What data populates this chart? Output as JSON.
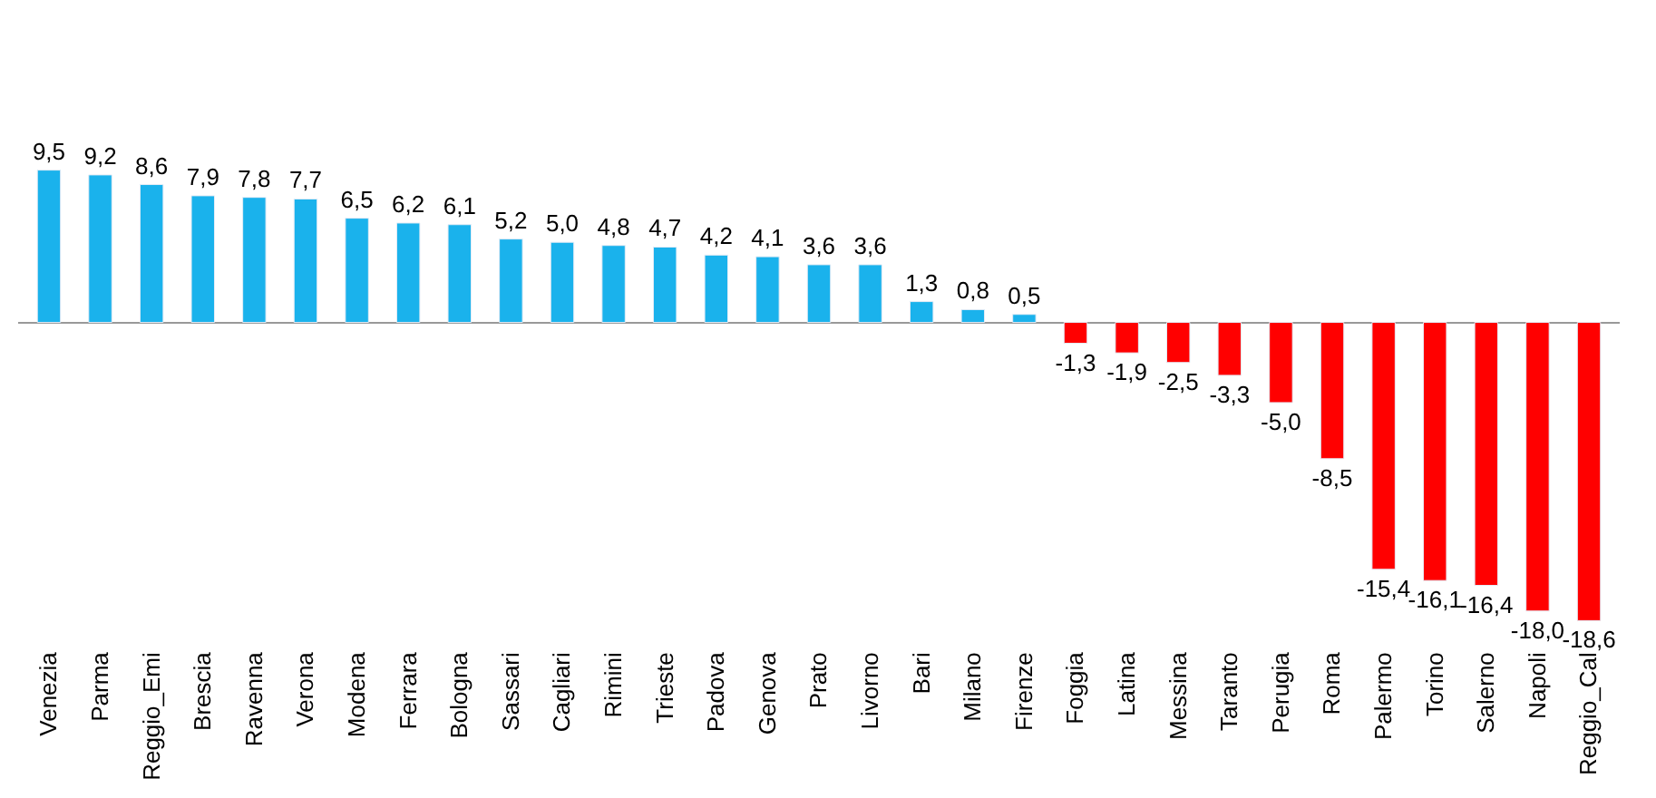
{
  "chart_data": {
    "type": "bar",
    "categories": [
      "Venezia",
      "Parma",
      "Reggio_Emi",
      "Brescia",
      "Ravenna",
      "Verona",
      "Modena",
      "Ferrara",
      "Bologna",
      "Sassari",
      "Cagliari",
      "Rimini",
      "Trieste",
      "Padova",
      "Genova",
      "Prato",
      "Livorno",
      "Bari",
      "Milano",
      "Firenze",
      "Foggia",
      "Latina",
      "Messina",
      "Taranto",
      "Perugia",
      "Roma",
      "Palermo",
      "Torino",
      "Salerno",
      "Napoli",
      "Reggio_Cal"
    ],
    "values": [
      9.5,
      9.2,
      8.6,
      7.9,
      7.8,
      7.7,
      6.5,
      6.2,
      6.1,
      5.2,
      5.0,
      4.8,
      4.7,
      4.2,
      4.1,
      3.6,
      3.6,
      1.3,
      0.8,
      0.5,
      -1.3,
      -1.9,
      -2.5,
      -3.3,
      -5.0,
      -8.5,
      -15.4,
      -16.1,
      -16.4,
      -18.0,
      -18.6
    ],
    "value_labels": [
      "9,5",
      "9,2",
      "8,6",
      "7,9",
      "7,8",
      "7,7",
      "6,5",
      "6,2",
      "6,1",
      "5,2",
      "5,0",
      "4,8",
      "4,7",
      "4,2",
      "4,1",
      "3,6",
      "3,6",
      "1,3",
      "0,8",
      "0,5",
      "-1,3",
      "-1,9",
      "-2,5",
      "-3,3",
      "-5,0",
      "-8,5",
      "-15,4",
      "-16,1",
      "-16,4",
      "-18,0",
      "-18,6"
    ],
    "colors": [
      "#1ab2ec",
      "#1ab2ec",
      "#1ab2ec",
      "#1ab2ec",
      "#1ab2ec",
      "#1ab2ec",
      "#1ab2ec",
      "#1ab2ec",
      "#1ab2ec",
      "#1ab2ec",
      "#1ab2ec",
      "#1ab2ec",
      "#1ab2ec",
      "#1ab2ec",
      "#1ab2ec",
      "#1ab2ec",
      "#1ab2ec",
      "#1ab2ec",
      "#1ab2ec",
      "#1ab2ec",
      "#ff0000",
      "#ff0000",
      "#ff0000",
      "#ff0000",
      "#ff0000",
      "#ff0000",
      "#ff0000",
      "#ff0000",
      "#ff0000",
      "#ff0000",
      "#ff0000"
    ],
    "legend": false
  }
}
